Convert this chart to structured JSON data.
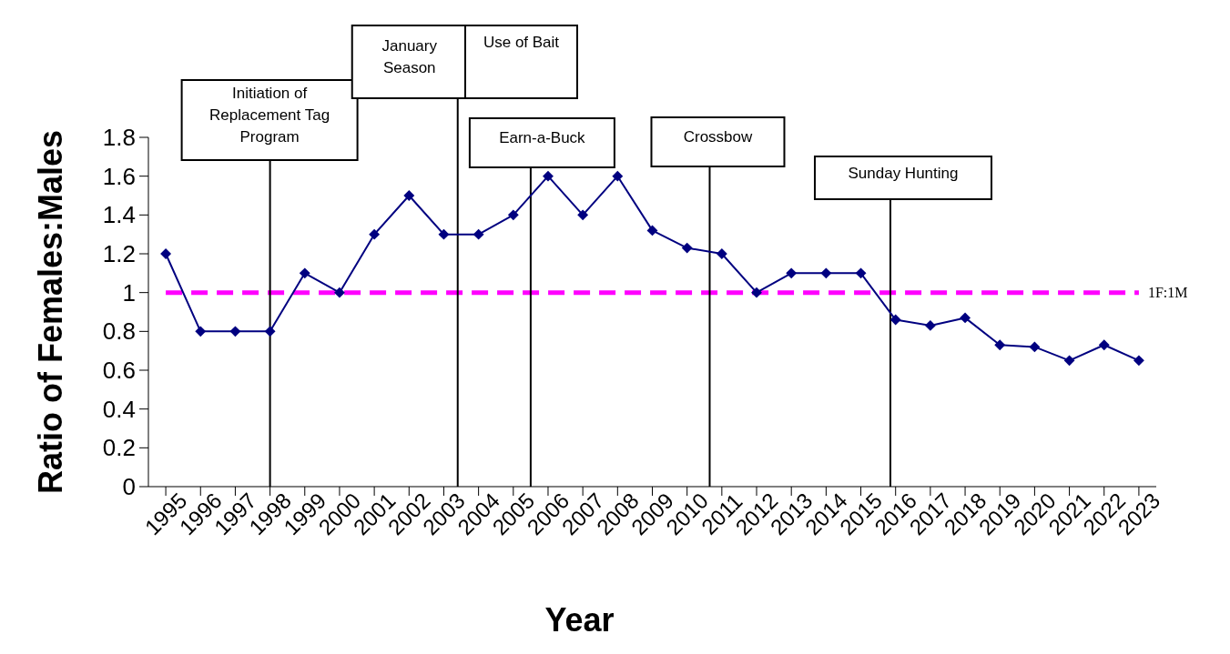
{
  "chart_data": {
    "type": "line",
    "xlabel": "Year",
    "ylabel": "Ratio of Females:Males",
    "x": [
      1995,
      1996,
      1997,
      1998,
      1999,
      2000,
      2001,
      2002,
      2003,
      2004,
      2005,
      2006,
      2007,
      2008,
      2009,
      2010,
      2011,
      2012,
      2013,
      2014,
      2015,
      2016,
      2017,
      2018,
      2019,
      2020,
      2021,
      2022,
      2023
    ],
    "series": [
      {
        "color": "#000080",
        "values": [
          1.2,
          0.8,
          0.8,
          0.8,
          1.1,
          1.0,
          1.3,
          1.5,
          1.3,
          1.3,
          1.4,
          1.6,
          1.4,
          1.6,
          1.32,
          1.23,
          1.2,
          1.0,
          1.1,
          1.1,
          1.1,
          0.86,
          0.83,
          0.87,
          0.73,
          0.72,
          0.65,
          0.73,
          0.65
        ]
      }
    ],
    "xlim": [
      1994.5,
      2023.5
    ],
    "xticks": [
      1995,
      1996,
      1997,
      1998,
      1999,
      2000,
      2001,
      2002,
      2003,
      2004,
      2005,
      2006,
      2007,
      2008,
      2009,
      2010,
      2011,
      2012,
      2013,
      2014,
      2015,
      2016,
      2017,
      2018,
      2019,
      2020,
      2021,
      2022,
      2023
    ],
    "ylim": [
      0,
      1.8
    ],
    "yticks": [
      0,
      0.2,
      0.4,
      0.6,
      0.8,
      1,
      1.2,
      1.4,
      1.6,
      1.8
    ],
    "marker": "diamond",
    "line_style": "solid",
    "grid": false,
    "annotations": [
      "Use of Bait"
    ],
    "ref_lines": [
      {
        "axis": "y",
        "value": 1,
        "label": "1F:1M",
        "color": "#ff00ff",
        "line_style": "dashed"
      },
      {
        "axis": "x",
        "value": 1998,
        "label": "Initiation of Replacement Tag Program",
        "color": "#000000"
      },
      {
        "axis": "x",
        "value": 2003.4,
        "label": "January Season",
        "color": "#000000"
      },
      {
        "axis": "x",
        "value": 2005.5,
        "label": "Earn-a-Buck",
        "color": "#000000"
      },
      {
        "axis": "x",
        "value": 2010.65,
        "label": "Crossbow",
        "color": "#000000"
      },
      {
        "axis": "x",
        "value": 2015.85,
        "label": "Sunday Hunting",
        "color": "#000000"
      }
    ]
  }
}
